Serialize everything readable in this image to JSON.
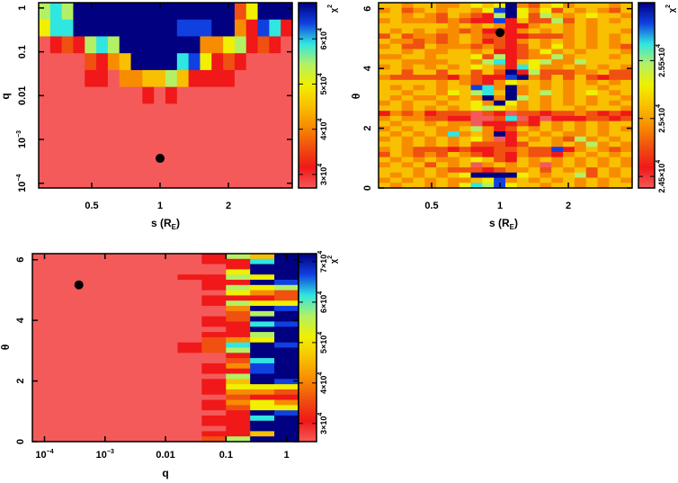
{
  "palette": [
    "#f45a5a",
    "#f01818",
    "#f05010",
    "#f88c00",
    "#f8c000",
    "#f0f000",
    "#b4f064",
    "#30e6e0",
    "#1040e0",
    "#000080"
  ],
  "chart_data": [
    {
      "type": "heatmap",
      "name": "chi2-q-vs-s",
      "xlabel": {
        "text": "s (R",
        "sub": "E",
        "tail": ")"
      },
      "ylabel": {
        "text": "q"
      },
      "xscale": "log",
      "yscale": "log",
      "xlim": [
        0.292,
        3.82
      ],
      "ylim": [
        7.8e-05,
        1.32
      ],
      "x_ticks": [
        {
          "value": 0.5,
          "label": "0.5"
        },
        {
          "value": 1,
          "label": "1"
        },
        {
          "value": 2,
          "label": "2"
        }
      ],
      "y_ticks": [
        {
          "value": 1,
          "label": "1"
        },
        {
          "value": 0.1,
          "label": "0.1"
        },
        {
          "value": 0.01,
          "label": "0.01"
        },
        {
          "value": 0.001,
          "label": "10",
          "sup": "−3"
        },
        {
          "value": 0.0001,
          "label": "10",
          "sup": "−4"
        }
      ],
      "colorbar": {
        "label": "χ",
        "sup": "2",
        "range": [
          27000,
          68000
        ],
        "ticks": [
          {
            "value": 30000,
            "label": "3×10",
            "sup": "4"
          },
          {
            "value": 40000,
            "label": "4×10",
            "sup": "4"
          },
          {
            "value": 50000,
            "label": "5×10",
            "sup": "4"
          },
          {
            "value": 60000,
            "label": "6×10",
            "sup": "4"
          }
        ]
      },
      "cell_level_note": "each digit 0-9 maps linearly onto colorbar range (chi2)",
      "best_fit": {
        "x": 1,
        "y": 0.00037
      },
      "cells": [
        "6769999999999999925999",
        "5779999999998889931871",
        "0121676999999933561210",
        "0000213499997851210000",
        "0000110334464111100000",
        "0000000001010000000000",
        "0000000000000000000000",
        "0000000000000000000000",
        "0000000000000000000000",
        "0000000000000000000000",
        "0000000000000000000000"
      ]
    },
    {
      "type": "heatmap",
      "name": "chi2-theta-vs-s",
      "xlabel": {
        "text": "s (R",
        "sub": "E",
        "tail": ")"
      },
      "ylabel": {
        "text": "θ"
      },
      "xscale": "log",
      "yscale": "linear",
      "xlim": [
        0.292,
        3.82
      ],
      "ylim": [
        0,
        6.2
      ],
      "x_ticks": [
        {
          "value": 0.5,
          "label": "0.5"
        },
        {
          "value": 1,
          "label": "1"
        },
        {
          "value": 2,
          "label": "2"
        }
      ],
      "y_ticks": [
        {
          "value": 0,
          "label": "0"
        },
        {
          "value": 2,
          "label": "2"
        },
        {
          "value": 4,
          "label": "4"
        },
        {
          "value": 6,
          "label": "6"
        }
      ],
      "colorbar": {
        "label": "χ",
        "sup": "2",
        "range": [
          24400,
          26000
        ],
        "ticks": [
          {
            "value": 24500,
            "label": "2.45×10",
            "sup": "4"
          },
          {
            "value": 25000,
            "label": "2.5×10",
            "sup": "4"
          },
          {
            "value": 25500,
            "label": "2.55×10",
            "sup": "4"
          }
        ]
      },
      "best_fit": {
        "x": 1,
        "y": 5.2
      },
      "cells": [
        "4434433454593245344434",
        "3423434435895352434324",
        "4434324321695264345443",
        "3433323211814226243434",
        "4444443434311344343444",
        "4343433231113434343443",
        "2423323432211222343434",
        "4332323431213434343434",
        "3422433323212435343432",
        "4434334434112353434443",
        "3344344452612336344434",
        "4433334436714563364444",
        "3434343454317533434343",
        "4424424424291622233422",
        "3222221321189324242122",
        "4444434321354434343434",
        "4343434487393434344344",
        "4434435467493464345434",
        "4343343439396434343443",
        "3434434453953434343434",
        "4434343456543434434443",
        "1323122202102212232121",
        "3433221100270101112212",
        "4344343301112143434344",
        "3434433463124343434343",
        "4343437343913434334344",
        "3434343453014343263434",
        "4434343422212443436343",
        "3432221211223228134323",
        "2432324321213221343434",
        "4343433454214343434343",
        "3434243403434303434343",
        "4443432221233424342434",
        "4343434599995434462434",
        "3434343345834343434343",
        "4344343576854434434344"
      ]
    },
    {
      "type": "heatmap",
      "name": "chi2-theta-vs-q",
      "xlabel": {
        "text": "q"
      },
      "ylabel": {
        "text": "θ"
      },
      "xscale": "log",
      "yscale": "linear",
      "xlim": [
        6.3e-05,
        1.58
      ],
      "ylim": [
        0,
        6.2
      ],
      "x_ticks": [
        {
          "value": 0.0001,
          "label": "10",
          "sup": "−4"
        },
        {
          "value": 0.001,
          "label": "10",
          "sup": "−3"
        },
        {
          "value": 0.01,
          "label": "0.01"
        },
        {
          "value": 0.1,
          "label": "0.1"
        },
        {
          "value": 1,
          "label": "1"
        }
      ],
      "y_ticks": [
        {
          "value": 0,
          "label": "0"
        },
        {
          "value": 2,
          "label": "2"
        },
        {
          "value": 4,
          "label": "4"
        },
        {
          "value": 6,
          "label": "6"
        }
      ],
      "colorbar": {
        "label": "χ",
        "sup": "2",
        "range": [
          25500,
          72000
        ],
        "ticks": [
          {
            "value": 30000,
            "label": "3×10",
            "sup": "4"
          },
          {
            "value": 40000,
            "label": "4×10",
            "sup": "4"
          },
          {
            "value": 50000,
            "label": "5×10",
            "sup": "4"
          },
          {
            "value": 60000,
            "label": "6×10",
            "sup": "4"
          },
          {
            "value": 70000,
            "label": "7×10",
            "sup": "4"
          }
        ]
      },
      "best_fit": {
        "x": 0.00037,
        "y": 5.17
      },
      "cells": [
        "00000001649",
        "00000001179",
        "00000000199",
        "00000000599",
        "00000011659",
        "00000001198",
        "00000001656",
        "00000000532",
        "00000001112",
        "00000001655",
        "00000000398",
        "00000000269",
        "00000001299",
        "00000001178",
        "00000000199",
        "00000001169",
        "00000002359",
        "00000012798",
        "00000012699",
        "00000000199",
        "00000000279",
        "00000001389",
        "00000001189",
        "00000000699",
        "00000001498",
        "00000001555",
        "00000001332",
        "00000000211",
        "00000001353",
        "00000001255",
        "00000000198",
        "00000001179",
        "00000001199",
        "00000000199",
        "00000001149",
        "00000002699"
      ]
    }
  ]
}
